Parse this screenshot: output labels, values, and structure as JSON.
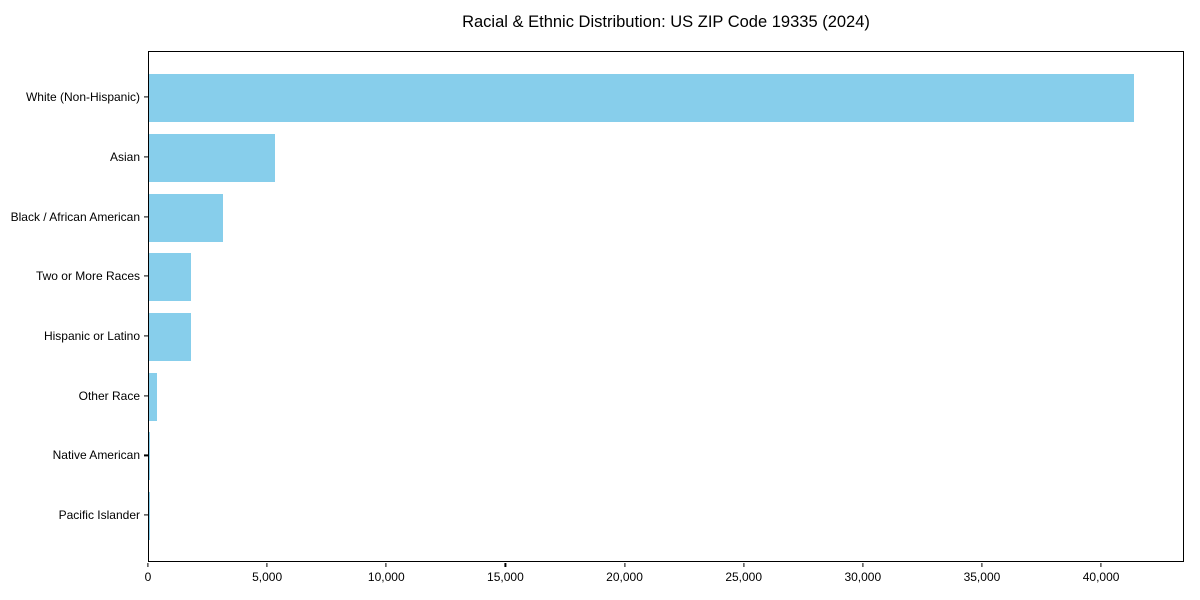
{
  "chart_data": {
    "type": "bar",
    "orientation": "horizontal",
    "title": "Racial & Ethnic Distribution: US ZIP Code 19335 (2024)",
    "categories": [
      "White (Non-Hispanic)",
      "Asian",
      "Black / African American",
      "Two or More Races",
      "Hispanic or Latino",
      "Other Race",
      "Native American",
      "Pacific Islander"
    ],
    "values": [
      41420,
      5310,
      3100,
      1770,
      1760,
      340,
      30,
      10
    ],
    "xlabel": "",
    "ylabel": "",
    "xlim": [
      0,
      43480
    ],
    "x_ticks": [
      0,
      5000,
      10000,
      15000,
      20000,
      25000,
      30000,
      35000,
      40000
    ],
    "x_tick_labels": [
      "0",
      "5,000",
      "10,000",
      "15,000",
      "20,000",
      "25,000",
      "30,000",
      "35,000",
      "40,000"
    ],
    "bar_color": "#87CEEB",
    "spine_color": "#000000",
    "text_color": "#000000",
    "background_color": "#ffffff",
    "grid": false,
    "legend": null
  }
}
